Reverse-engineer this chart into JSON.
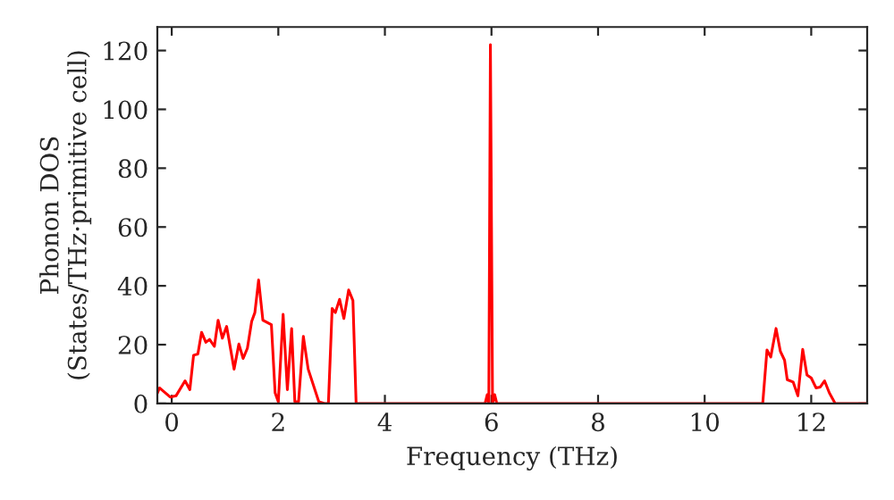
{
  "chart_data": {
    "type": "line",
    "xlabel": "Frequency (THz)",
    "ylabel": "Phonon DOS\n(States/THz·primitive cell)",
    "xlim": [
      -0.27,
      13.05
    ],
    "ylim": [
      0,
      128
    ],
    "xticks": [
      0,
      2,
      4,
      6,
      8,
      10,
      12
    ],
    "yticks": [
      0,
      20,
      40,
      60,
      80,
      100,
      120
    ],
    "grid": false,
    "marker": "none",
    "line_style": "solid",
    "series": [
      {
        "color": "#ff0000",
        "x": [
          -0.27,
          -0.23,
          -0.03,
          0.08,
          0.25,
          0.34,
          0.41,
          0.49,
          0.56,
          0.64,
          0.71,
          0.8,
          0.87,
          0.95,
          1.03,
          1.17,
          1.26,
          1.34,
          1.42,
          1.5,
          1.56,
          1.63,
          1.71,
          1.87,
          1.94,
          2.0,
          2.09,
          2.17,
          2.25,
          2.31,
          2.38,
          2.47,
          2.56,
          2.76,
          2.87,
          2.94,
          3.01,
          3.07,
          3.15,
          3.23,
          3.32,
          3.4,
          3.46,
          5.88,
          5.92,
          5.95,
          5.98,
          6.02,
          6.06,
          6.1,
          11.09,
          11.17,
          11.24,
          11.34,
          11.42,
          11.5,
          11.55,
          11.66,
          11.75,
          11.84,
          11.92,
          12.0,
          12.09,
          12.17,
          12.25,
          12.34,
          12.45,
          13.05
        ],
        "values": [
          3.5,
          5.3,
          2.2,
          2.6,
          7.7,
          4.7,
          16.4,
          16.8,
          24.2,
          20.8,
          21.8,
          19.4,
          28.3,
          22.2,
          26.2,
          11.7,
          20.2,
          15.3,
          18.8,
          27.9,
          30.9,
          42,
          28.3,
          26.8,
          3.6,
          0.6,
          30.3,
          4.7,
          25.5,
          0.6,
          0.6,
          22.8,
          11.7,
          0.6,
          0,
          0,
          32.3,
          30.9,
          35.4,
          28.9,
          38.6,
          35,
          0,
          0,
          3,
          0,
          122,
          0,
          3,
          0,
          0,
          18.2,
          15.8,
          25.5,
          17.8,
          14.7,
          8.1,
          7.3,
          2.6,
          18.4,
          9.7,
          8.7,
          5.3,
          5.6,
          7.7,
          3.6,
          0,
          0
        ]
      }
    ]
  }
}
